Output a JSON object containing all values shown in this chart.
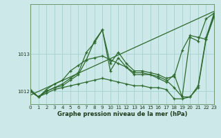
{
  "xlabel": "Graphe pression niveau de la mer (hPa)",
  "ylabel": "",
  "bg_color": "#cde8e8",
  "grid_color": "#a8d4d4",
  "line_color": "#2d6a2d",
  "xlim": [
    0,
    23
  ],
  "ylim": [
    1011.65,
    1014.35
  ],
  "yticks": [
    1012,
    1013
  ],
  "xticks": [
    0,
    1,
    2,
    3,
    4,
    5,
    6,
    7,
    8,
    9,
    10,
    11,
    12,
    13,
    14,
    15,
    16,
    17,
    18,
    19,
    20,
    21,
    22,
    23
  ],
  "series": [
    {
      "x": [
        0,
        23
      ],
      "y": [
        1011.9,
        1014.15
      ]
    },
    {
      "x": [
        0,
        1,
        2,
        3,
        4,
        5,
        6,
        7,
        8,
        9,
        10,
        11,
        12,
        13,
        14,
        15,
        16,
        17,
        18,
        19,
        20,
        21,
        22,
        23
      ],
      "y": [
        1012.0,
        1011.85,
        1012.0,
        1012.1,
        1012.15,
        1012.3,
        1012.45,
        1012.85,
        1013.35,
        1013.65,
        1012.75,
        1013.05,
        1012.75,
        1012.55,
        1012.55,
        1012.5,
        1012.45,
        1012.35,
        1012.4,
        1013.1,
        1013.5,
        1013.45,
        1013.4,
        1014.05
      ]
    },
    {
      "x": [
        0,
        1,
        2,
        3,
        4,
        5,
        6,
        7,
        8,
        9,
        10,
        11,
        12,
        13,
        14,
        15,
        16,
        17,
        18,
        19,
        20,
        21,
        22,
        23
      ],
      "y": [
        1012.0,
        1011.85,
        1012.05,
        1012.2,
        1012.3,
        1012.55,
        1012.7,
        1012.85,
        1012.9,
        1012.95,
        1012.85,
        1012.75,
        1012.65,
        1012.5,
        1012.5,
        1012.45,
        1012.4,
        1012.3,
        1012.1,
        1011.85,
        1011.85,
        1012.15,
        1013.45,
        1014.1
      ]
    },
    {
      "x": [
        0,
        1,
        2,
        3,
        4,
        5,
        6,
        7,
        8,
        9,
        10,
        11,
        12,
        13,
        14,
        15,
        16,
        17,
        18,
        19,
        20,
        21,
        22,
        23
      ],
      "y": [
        1012.0,
        1011.85,
        1011.95,
        1012.05,
        1012.1,
        1012.15,
        1012.2,
        1012.25,
        1012.3,
        1012.35,
        1012.3,
        1012.25,
        1012.2,
        1012.15,
        1012.15,
        1012.1,
        1012.1,
        1012.05,
        1011.8,
        1011.8,
        1011.85,
        1012.1,
        1013.4,
        1014.0
      ]
    },
    {
      "x": [
        0,
        1,
        2,
        3,
        4,
        5,
        6,
        7,
        8,
        9,
        10,
        11,
        12,
        13,
        14,
        15,
        16,
        17,
        18,
        19,
        20,
        21,
        22,
        23
      ],
      "y": [
        1012.05,
        1011.85,
        1012.0,
        1012.1,
        1012.2,
        1012.35,
        1012.5,
        1013.05,
        1013.3,
        1013.65,
        1012.55,
        1012.9,
        1012.65,
        1012.45,
        1012.45,
        1012.45,
        1012.35,
        1012.25,
        1012.45,
        1011.85,
        1013.45,
        1013.35,
        1013.95,
        1014.1
      ]
    }
  ]
}
